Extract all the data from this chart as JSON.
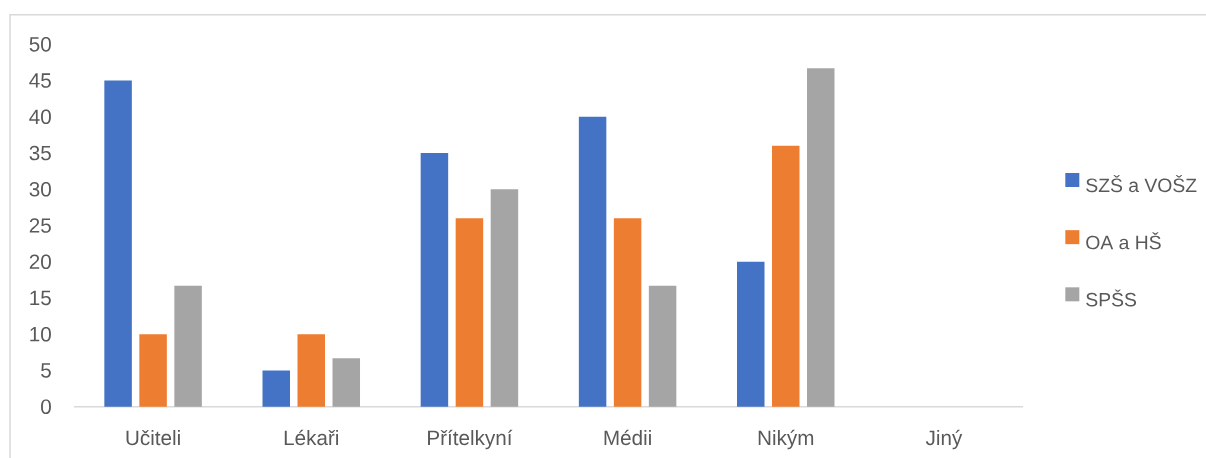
{
  "chart_data": {
    "type": "bar",
    "categories": [
      "Učiteli",
      "Lékaři",
      "Přítelkyní",
      "Médii",
      "Nikým",
      "Jiný"
    ],
    "series": [
      {
        "name": "SZŠ a VOŠZ",
        "color": "#4472c4",
        "values": [
          45,
          5,
          35,
          40,
          20,
          0
        ]
      },
      {
        "name": "OA a HŠ",
        "color": "#ed7d31",
        "values": [
          10,
          10,
          26,
          26,
          36,
          0
        ]
      },
      {
        "name": "SPŠS",
        "color": "#a5a5a5",
        "values": [
          16.7,
          6.7,
          30,
          16.7,
          46.7,
          0
        ]
      }
    ],
    "ylim": [
      0,
      50
    ],
    "yticks": [
      0,
      5,
      10,
      15,
      20,
      25,
      30,
      35,
      40,
      45,
      50
    ],
    "grid": false,
    "legend": "right"
  }
}
